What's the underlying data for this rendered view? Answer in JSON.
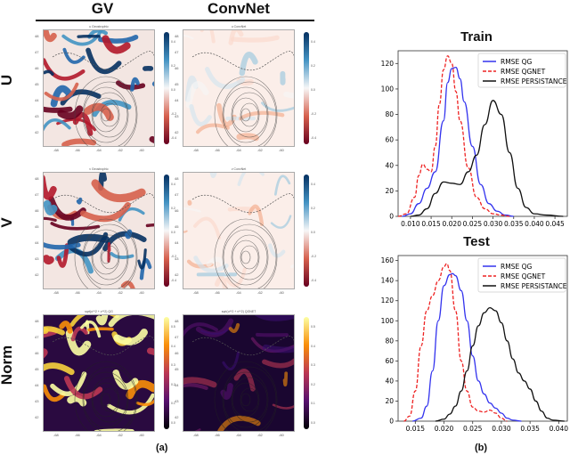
{
  "figure": {
    "column_titles": [
      "GV",
      "ConvNet"
    ],
    "row_labels": [
      "U",
      "V",
      "Norm"
    ],
    "subfigure_labels": [
      "(a)",
      "(b)"
    ]
  },
  "maps": {
    "panel_titles": {
      "u_gv": "u Geostrophic",
      "u_cnn": "u ConvNet",
      "v_gv": "v Geostrophic",
      "v_cnn": "v ConvNet",
      "n_gv": "sqrt(u**2 + v**2) QG",
      "n_cnn": "sqrt(u**2 + v**2) QGNET"
    },
    "lat_ticks": [
      "48",
      "47",
      "46",
      "45",
      "44",
      "43",
      "42"
    ],
    "lon_ticks": [
      "-68",
      "-66",
      "-64",
      "-62",
      "-60"
    ],
    "uv_colorbar_ticks": [
      "0.4",
      "0.2",
      "0.0",
      "-0.2",
      "-0.4"
    ],
    "norm_colorbar_ticks": [
      "0.5",
      "0.4",
      "0.3",
      "0.2",
      "0.1",
      "0.0"
    ],
    "colors": {
      "uv_cmap": [
        "#67001f",
        "#d6604d",
        "#f7f7f7",
        "#4393c3",
        "#053061"
      ],
      "norm_cmap": [
        "#000004",
        "#56106e",
        "#bb3754",
        "#f98e09",
        "#fcffa4"
      ]
    }
  },
  "chart_data": [
    {
      "type": "line",
      "title": "Train",
      "xlabel": "",
      "ylabel": "",
      "xlim": [
        0.007,
        0.048
      ],
      "ylim": [
        0,
        130
      ],
      "x_ticks": [
        "0.010",
        "0.015",
        "0.020",
        "0.025",
        "0.030",
        "0.035",
        "0.040",
        "0.045"
      ],
      "y_ticks": [
        "0",
        "20",
        "40",
        "60",
        "80",
        "100",
        "120"
      ],
      "legend": [
        "RMSE QG",
        "RMSE QGNET",
        "RMSE PERSISTANCE"
      ],
      "legend_position": "upper right",
      "grid": false,
      "series": [
        {
          "name": "RMSE QG",
          "color": "#3333ee",
          "style": "solid",
          "x": [
            0.008,
            0.01,
            0.012,
            0.014,
            0.016,
            0.018,
            0.019,
            0.02,
            0.021,
            0.022,
            0.023,
            0.025,
            0.027,
            0.029,
            0.031,
            0.033,
            0.035
          ],
          "y": [
            0,
            2,
            10,
            22,
            35,
            75,
            105,
            116,
            117,
            108,
            90,
            55,
            25,
            10,
            4,
            1,
            0
          ]
        },
        {
          "name": "RMSE QGNET",
          "color": "#ee2222",
          "style": "dashed",
          "x": [
            0.007,
            0.009,
            0.011,
            0.012,
            0.013,
            0.014,
            0.015,
            0.016,
            0.017,
            0.018,
            0.019,
            0.02,
            0.021,
            0.022,
            0.024,
            0.026,
            0.028,
            0.03,
            0.032,
            0.034
          ],
          "y": [
            0,
            2,
            15,
            32,
            41,
            37,
            35,
            55,
            88,
            115,
            126,
            120,
            98,
            75,
            38,
            15,
            6,
            2,
            1,
            0
          ]
        },
        {
          "name": "RMSE PERSISTANCE",
          "color": "#111111",
          "style": "solid",
          "x": [
            0.01,
            0.012,
            0.014,
            0.016,
            0.018,
            0.02,
            0.022,
            0.024,
            0.026,
            0.028,
            0.03,
            0.032,
            0.034,
            0.036,
            0.038,
            0.04,
            0.043,
            0.047
          ],
          "y": [
            0,
            1,
            6,
            18,
            27,
            26,
            25,
            35,
            48,
            72,
            91,
            80,
            50,
            22,
            7,
            2,
            1,
            0
          ]
        }
      ]
    },
    {
      "type": "line",
      "title": "Test",
      "xlabel": "",
      "ylabel": "",
      "xlim": [
        0.012,
        0.0415
      ],
      "ylim": [
        0,
        165
      ],
      "x_ticks": [
        "0.015",
        "0.020",
        "0.025",
        "0.030",
        "0.035",
        "0.040"
      ],
      "y_ticks": [
        "0",
        "20",
        "40",
        "60",
        "80",
        "100",
        "120",
        "140",
        "160"
      ],
      "legend": [
        "RMSE QG",
        "RMSE QGNET",
        "RMSE PERSISTANCE"
      ],
      "legend_position": "upper right",
      "grid": false,
      "series": [
        {
          "name": "RMSE QG",
          "color": "#3333ee",
          "style": "solid",
          "x": [
            0.0145,
            0.016,
            0.017,
            0.018,
            0.019,
            0.02,
            0.021,
            0.0215,
            0.022,
            0.023,
            0.024,
            0.025,
            0.026,
            0.027,
            0.028,
            0.029,
            0.03,
            0.031,
            0.032,
            0.0335
          ],
          "y": [
            0,
            3,
            15,
            50,
            100,
            135,
            146,
            147,
            145,
            130,
            100,
            65,
            40,
            27,
            18,
            13,
            8,
            3,
            1,
            0
          ]
        },
        {
          "name": "RMSE QGNET",
          "color": "#ee2222",
          "style": "dashed",
          "x": [
            0.013,
            0.014,
            0.015,
            0.016,
            0.017,
            0.018,
            0.019,
            0.02,
            0.0205,
            0.021,
            0.022,
            0.023,
            0.024,
            0.025,
            0.026,
            0.027,
            0.028,
            0.029,
            0.03,
            0.031
          ],
          "y": [
            0,
            5,
            30,
            75,
            110,
            125,
            140,
            154,
            157,
            150,
            110,
            60,
            30,
            14,
            10,
            9,
            11,
            8,
            3,
            0
          ]
        },
        {
          "name": "RMSE PERSISTANCE",
          "color": "#111111",
          "style": "solid",
          "x": [
            0.0185,
            0.02,
            0.021,
            0.022,
            0.023,
            0.024,
            0.025,
            0.026,
            0.027,
            0.028,
            0.029,
            0.03,
            0.031,
            0.032,
            0.033,
            0.034,
            0.035,
            0.036,
            0.037,
            0.038,
            0.039,
            0.041
          ],
          "y": [
            0,
            2,
            7,
            15,
            30,
            50,
            75,
            95,
            108,
            113,
            110,
            98,
            80,
            62,
            48,
            40,
            32,
            20,
            10,
            3,
            1,
            0
          ]
        }
      ]
    }
  ]
}
